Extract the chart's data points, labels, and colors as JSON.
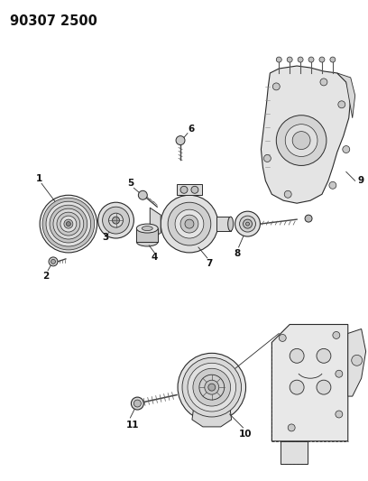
{
  "title": "90307 2500",
  "background_color": "#ffffff",
  "fig_width": 4.08,
  "fig_height": 5.33,
  "dpi": 100,
  "lc": "#2a2a2a",
  "lc_light": "#666666",
  "label_fontsize": 7.5,
  "title_fontsize": 10.5
}
